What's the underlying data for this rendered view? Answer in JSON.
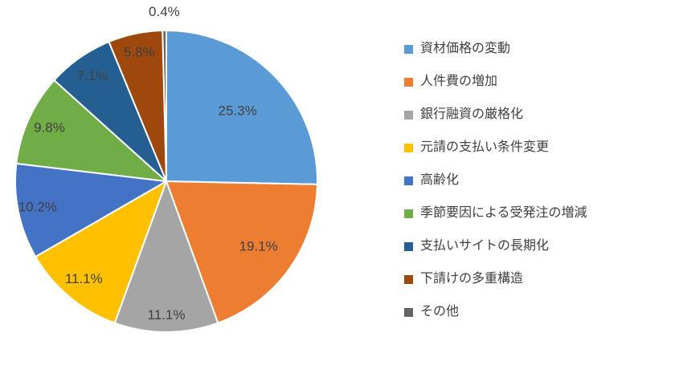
{
  "chart_data": {
    "type": "pie",
    "title": "",
    "legend_position": "right",
    "start_angle_deg": 0,
    "direction": "clockwise",
    "label_color": "#404040",
    "background": "#FFFFFF",
    "slices": [
      {
        "label": "資材価格の変動",
        "value": 25.3,
        "pct_label": "25.3%",
        "color": "#5B9BD5"
      },
      {
        "label": "人件費の増加",
        "value": 19.1,
        "pct_label": "19.1%",
        "color": "#ED7D31"
      },
      {
        "label": "銀行融資の厳格化",
        "value": 11.1,
        "pct_label": "11.1%",
        "color": "#A5A5A5"
      },
      {
        "label": "元請の支払い条件変更",
        "value": 11.1,
        "pct_label": "11.1%",
        "color": "#FFC000"
      },
      {
        "label": "高齢化",
        "value": 10.2,
        "pct_label": "10.2%",
        "color": "#4472C4"
      },
      {
        "label": "季節要因による受発注の増減",
        "value": 9.8,
        "pct_label": "9.8%",
        "color": "#70AD47"
      },
      {
        "label": "支払いサイトの長期化",
        "value": 7.1,
        "pct_label": "7.1%",
        "color": "#255E91"
      },
      {
        "label": "下請けの多重構造",
        "value": 5.8,
        "pct_label": "5.8%",
        "color": "#9E480E"
      },
      {
        "label": "その他",
        "value": 0.4,
        "pct_label": "0.4%",
        "color": "#636363"
      }
    ]
  }
}
